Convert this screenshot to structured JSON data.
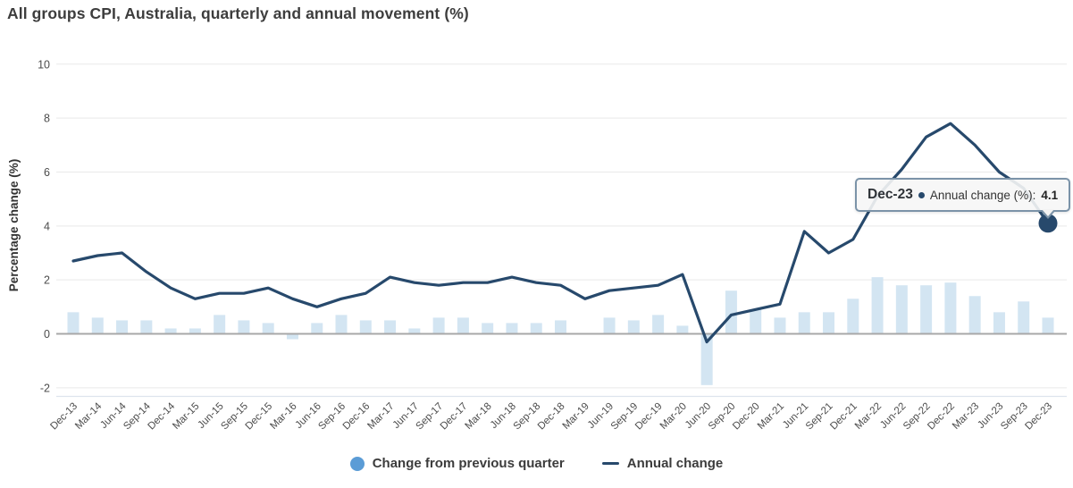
{
  "title": "All groups CPI, Australia, quarterly and annual movement (%)",
  "chart_data": {
    "type": "combo",
    "title": "All groups CPI, Australia, quarterly and annual movement (%)",
    "xlabel": "",
    "ylabel": "Percentage change (%)",
    "ylim": [
      -2.45,
      10.3
    ],
    "yticks": [
      10,
      8,
      6,
      4,
      2,
      0,
      -2
    ],
    "grid": true,
    "legend_position": "bottom",
    "categories": [
      "Dec-13",
      "Mar-14",
      "Jun-14",
      "Sep-14",
      "Dec-14",
      "Mar-15",
      "Jun-15",
      "Sep-15",
      "Dec-15",
      "Mar-16",
      "Jun-16",
      "Sep-16",
      "Dec-16",
      "Mar-17",
      "Jun-17",
      "Sep-17",
      "Dec-17",
      "Mar-18",
      "Jun-18",
      "Sep-18",
      "Dec-18",
      "Mar-19",
      "Jun-19",
      "Sep-19",
      "Dec-19",
      "Mar-20",
      "Jun-20",
      "Sep-20",
      "Dec-20",
      "Mar-21",
      "Jun-21",
      "Sep-21",
      "Dec-21",
      "Mar-22",
      "Jun-22",
      "Sep-22",
      "Dec-22",
      "Mar-23",
      "Jun-23",
      "Sep-23",
      "Dec-23"
    ],
    "series": [
      {
        "name": "Change from previous quarter",
        "type": "bar",
        "color": "#d3e5f2",
        "legend_marker_color": "#5b9cd6",
        "values": [
          0.8,
          0.6,
          0.5,
          0.5,
          0.2,
          0.2,
          0.7,
          0.5,
          0.4,
          -0.2,
          0.4,
          0.7,
          0.5,
          0.5,
          0.2,
          0.6,
          0.6,
          0.4,
          0.4,
          0.4,
          0.5,
          0.0,
          0.6,
          0.5,
          0.7,
          0.3,
          -1.9,
          1.6,
          0.9,
          0.6,
          0.8,
          0.8,
          1.3,
          2.1,
          1.8,
          1.8,
          1.9,
          1.4,
          0.8,
          1.2,
          0.6
        ]
      },
      {
        "name": "Annual change",
        "type": "line",
        "color": "#27496c",
        "values": [
          2.7,
          2.9,
          3.0,
          2.3,
          1.7,
          1.3,
          1.5,
          1.5,
          1.7,
          1.3,
          1.0,
          1.3,
          1.5,
          2.1,
          1.9,
          1.8,
          1.9,
          1.9,
          2.1,
          1.9,
          1.8,
          1.3,
          1.6,
          1.7,
          1.8,
          2.2,
          -0.3,
          0.7,
          0.9,
          1.1,
          3.8,
          3.0,
          3.5,
          5.1,
          6.1,
          7.3,
          7.8,
          7.0,
          6.0,
          5.4,
          4.1
        ]
      }
    ],
    "highlight": {
      "category": "Dec-23",
      "series": "Annual change",
      "value": 4.1
    }
  },
  "tooltip": {
    "category": "Dec-23",
    "series_label": "Annual change (%):",
    "value": "4.1"
  },
  "colors": {
    "bar_fill": "#d3e5f2",
    "line": "#27496c",
    "highlight_dot": "#27496c",
    "legend_circle": "#5b9cd6",
    "zero_line": "#a8a8a8",
    "gridline": "#e9e9e9",
    "axis_bottom": "#dde4ed",
    "tick_text": "#4c4c4c",
    "title_text": "#3d3d3d",
    "tooltip_border": "#7b93a8"
  }
}
